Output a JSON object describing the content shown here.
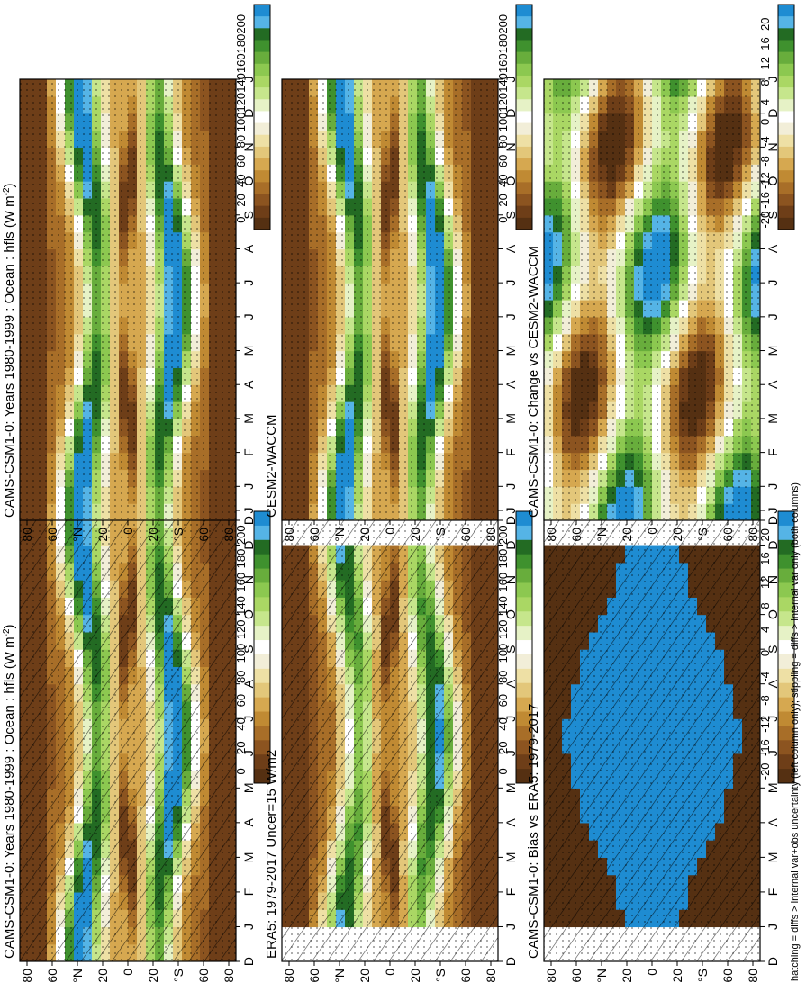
{
  "footer_note": "hatching = diffs > internal var+obs uncertainty (left column only); stippling = diffs > internal var only (both columns)",
  "colors": {
    "abs_scale": [
      "#1e8cd2",
      "#55b4e6",
      "#236b23",
      "#3f912e",
      "#68ad3c",
      "#8cc850",
      "#aad764",
      "#c6e68c",
      "#e6f2c6",
      "#ffffff",
      "#f2eed8",
      "#eee0a5",
      "#e3c77a",
      "#d6a850",
      "#c08a33",
      "#a86e28",
      "#8c5420",
      "#6e3e18",
      "#553012"
    ],
    "diff_scale": [
      "#1e8cd2",
      "#55b4e6",
      "#236b23",
      "#3f912e",
      "#68ad3c",
      "#8cc850",
      "#aad764",
      "#c6e68c",
      "#e6f2c6",
      "#ffffff",
      "#f2eed8",
      "#eee0a5",
      "#e3c77a",
      "#d6a850",
      "#c08a33",
      "#a86e28",
      "#8c5420",
      "#6e3e18",
      "#553012"
    ]
  },
  "chart_data": [
    {
      "type": "heatmap",
      "title": "CAMS-CSM1-0: Years 1980-1999 : Ocean : hfls (W m",
      "title_superscript": "-2",
      "title_suffix": ")",
      "x_ticks": [
        "D",
        "J",
        "F",
        "M",
        "A",
        "M",
        "J",
        "J",
        "A",
        "S",
        "O",
        "N",
        "D",
        "J"
      ],
      "y_ticks": [
        "80",
        "60",
        "°N",
        "20",
        "0",
        "20",
        "°S",
        "60",
        "80"
      ],
      "colorbar_labels": [
        "200",
        "180",
        "160",
        "140",
        "120",
        "100",
        "80",
        "60",
        "40",
        "20",
        "0"
      ],
      "scale": "abs",
      "hatching": true,
      "stippling": true
    },
    {
      "type": "heatmap",
      "title": "CAMS-CSM1-0: Years 1980-1999 : Ocean : hfls (W m",
      "title_superscript": "-2",
      "title_suffix": ")",
      "x_ticks": [
        "D",
        "J",
        "F",
        "M",
        "A",
        "M",
        "J",
        "J",
        "A",
        "S",
        "O",
        "N",
        "D",
        "J"
      ],
      "y_ticks": [
        "80",
        "60",
        "°N",
        "20",
        "0",
        "20",
        "°S",
        "60",
        "80"
      ],
      "colorbar_labels": [
        "200",
        "180",
        "160",
        "140",
        "120",
        "100",
        "80",
        "60",
        "40",
        "20",
        "0"
      ],
      "scale": "abs",
      "hatching": false,
      "stippling": true
    },
    {
      "type": "heatmap",
      "title": "ERA5: 1979-2017 Uncer=15 W/m2",
      "x_ticks": [
        "D",
        "J",
        "F",
        "M",
        "A",
        "M",
        "J",
        "J",
        "A",
        "S",
        "O",
        "N",
        "D",
        "J"
      ],
      "y_ticks": [
        "80",
        "60",
        "°N",
        "20",
        "0",
        "20",
        "°S",
        "60",
        "80"
      ],
      "colorbar_labels": [
        "200",
        "180",
        "160",
        "140",
        "120",
        "100",
        "80",
        "60",
        "40",
        "20",
        "0"
      ],
      "scale": "abs",
      "hatching": true,
      "stippling": true
    },
    {
      "type": "heatmap",
      "title": "CESM2-WACCM",
      "x_ticks": [
        "D",
        "J",
        "F",
        "M",
        "A",
        "M",
        "J",
        "J",
        "A",
        "S",
        "O",
        "N",
        "D",
        "J"
      ],
      "y_ticks": [
        "80",
        "60",
        "°N",
        "20",
        "0",
        "20",
        "°S",
        "60",
        "80"
      ],
      "colorbar_labels": [
        "200",
        "180",
        "160",
        "140",
        "120",
        "100",
        "80",
        "60",
        "40",
        "20",
        "0"
      ],
      "scale": "abs",
      "hatching": false,
      "stippling": true
    },
    {
      "type": "heatmap",
      "title": "CAMS-CSM1-0: Bias vs ERA5: 1979-2017",
      "x_ticks": [
        "D",
        "J",
        "F",
        "M",
        "A",
        "M",
        "J",
        "J",
        "A",
        "S",
        "O",
        "N",
        "D",
        "J"
      ],
      "y_ticks": [
        "80",
        "60",
        "°N",
        "20",
        "0",
        "20",
        "°S",
        "60",
        "80"
      ],
      "colorbar_labels": [
        "20",
        "16",
        "12",
        "8",
        "4",
        "0",
        "-4",
        "-8",
        "-12",
        "-16",
        "-20"
      ],
      "scale": "diff",
      "hatching": true,
      "stippling": true
    },
    {
      "type": "heatmap",
      "title": "CAMS-CSM1-0: Change vs CESM2-WACCM",
      "x_ticks": [
        "D",
        "J",
        "F",
        "M",
        "A",
        "M",
        "J",
        "J",
        "A",
        "S",
        "O",
        "N",
        "D",
        "J"
      ],
      "y_ticks": [
        "80",
        "60",
        "°N",
        "20",
        "0",
        "20",
        "°S",
        "60",
        "80"
      ],
      "colorbar_labels": [
        "20",
        "16",
        "12",
        "8",
        "4",
        "0",
        "-4",
        "-8",
        "-12",
        "-16",
        "-20"
      ],
      "scale": "diff",
      "hatching": false,
      "stippling": true
    }
  ]
}
